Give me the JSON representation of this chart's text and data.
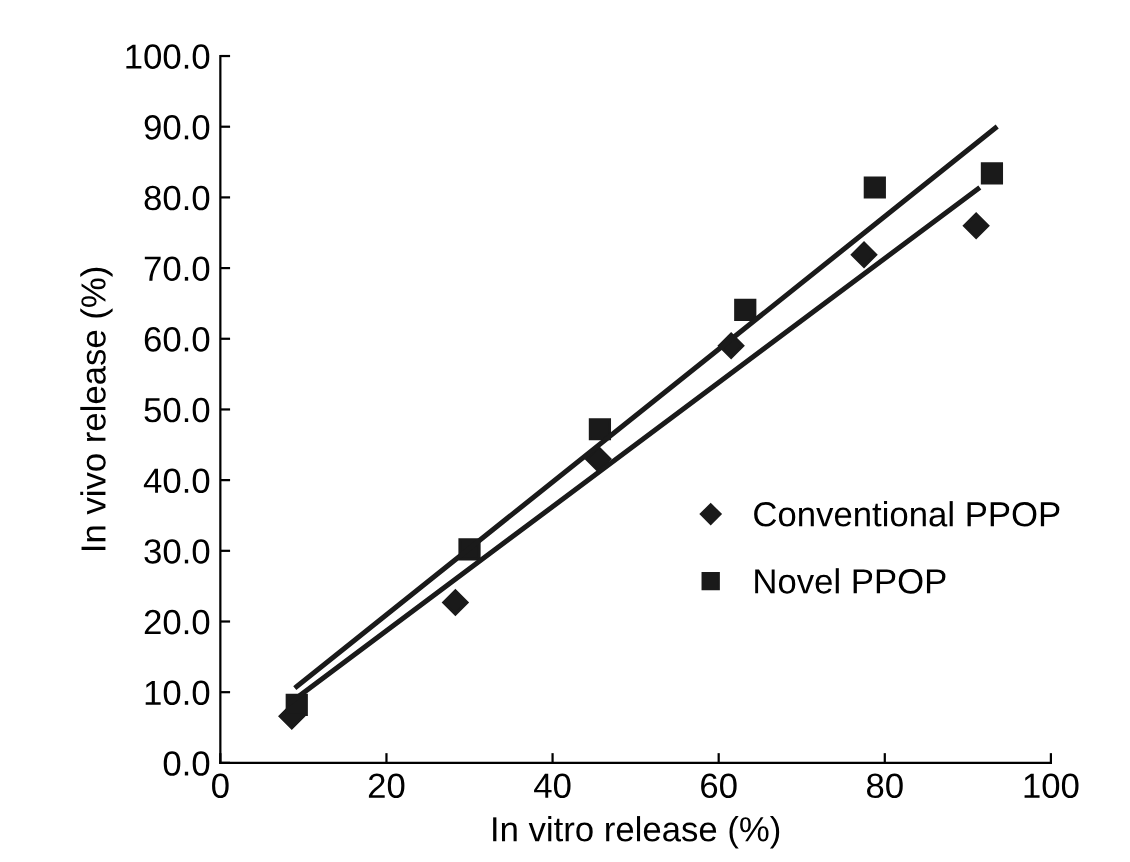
{
  "chart_data": {
    "type": "scatter",
    "xlabel": "In vitro release (%)",
    "ylabel": "In vivo release (%)",
    "xlim": [
      0,
      100
    ],
    "xticks": [
      0,
      20,
      40,
      60,
      80,
      100
    ],
    "ylim": [
      0,
      100
    ],
    "yticks": [
      {
        "value": 0,
        "label": "0.0"
      },
      {
        "value": 10,
        "label": "10.0"
      },
      {
        "value": 20,
        "label": "20.0"
      },
      {
        "value": 30,
        "label": "30.0"
      },
      {
        "value": 40,
        "label": "40.0"
      },
      {
        "value": 50,
        "label": "50.0"
      },
      {
        "value": 60,
        "label": "60.0"
      },
      {
        "value": 70,
        "label": "70.0"
      },
      {
        "value": 80,
        "label": "80.0"
      },
      {
        "value": 90,
        "label": "90.0"
      },
      {
        "value": 100,
        "label": "100.0"
      }
    ],
    "grid": false,
    "legend": "right",
    "series": [
      {
        "name": "Conventional PPOP",
        "marker": "diamond",
        "color": "#1a1a1a",
        "x": [
          8.6,
          28.3,
          45.5,
          61.5,
          77.5,
          91.0
        ],
        "values": [
          6.6,
          22.7,
          43.0,
          59.0,
          71.9,
          76.0
        ]
      },
      {
        "name": "Novel PPOP",
        "marker": "square",
        "color": "#1a1a1a",
        "x": [
          9.2,
          30.0,
          45.7,
          63.2,
          78.8,
          92.9
        ],
        "values": [
          8.2,
          30.2,
          47.2,
          64.1,
          81.4,
          83.4
        ]
      },
      {
        "type": "line",
        "color": "#1a1a1a",
        "marker": "none",
        "line_style": "solid",
        "x": [
          8.4,
          91.2
        ],
        "values": [
          8.5,
          81.2
        ]
      },
      {
        "type": "line",
        "color": "#1a1a1a",
        "marker": "none",
        "line_style": "solid",
        "x": [
          9.2,
          93.3
        ],
        "values": [
          10.8,
          89.8
        ]
      }
    ]
  }
}
